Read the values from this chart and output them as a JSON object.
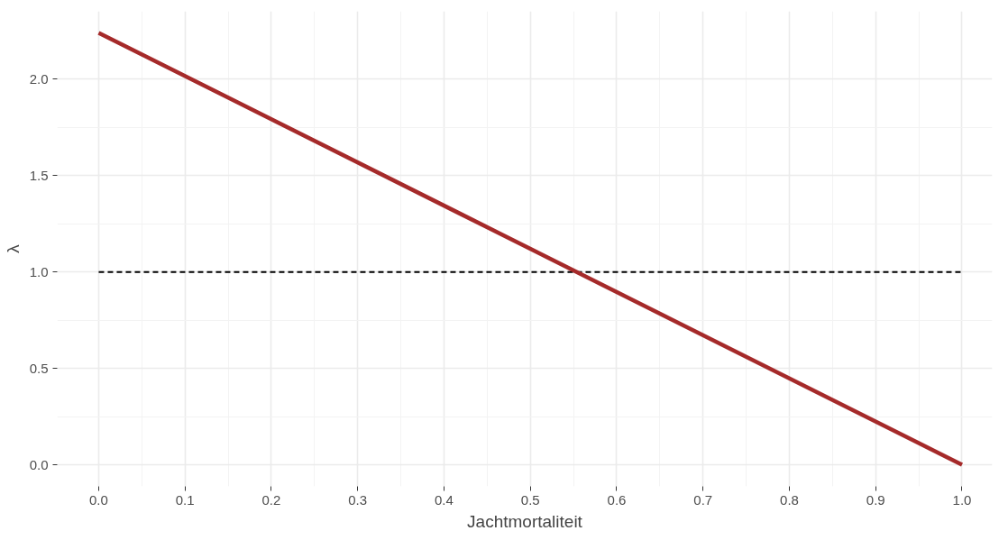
{
  "chart_data": {
    "type": "line",
    "xlabel": "Jachtmortaliteit",
    "ylabel": "λ",
    "x": [
      0,
      1
    ],
    "series": [
      {
        "color": "#a52a2a",
        "values": [
          2.24,
          0
        ]
      }
    ],
    "xlim": [
      -0.048,
      1.035
    ],
    "ylim": [
      -0.112,
      2.352
    ],
    "xticks": [
      {
        "value": 0,
        "label": "0.0"
      },
      {
        "value": 0.1,
        "label": "0.1"
      },
      {
        "value": 0.2,
        "label": "0.2"
      },
      {
        "value": 0.3,
        "label": "0.3"
      },
      {
        "value": 0.4,
        "label": "0.4"
      },
      {
        "value": 0.5,
        "label": "0.5"
      },
      {
        "value": 0.6,
        "label": "0.6"
      },
      {
        "value": 0.7,
        "label": "0.7"
      },
      {
        "value": 0.8,
        "label": "0.8"
      },
      {
        "value": 0.9,
        "label": "0.9"
      },
      {
        "value": 1,
        "label": "1.0"
      }
    ],
    "yticks": [
      {
        "value": 0,
        "label": "0.0"
      },
      {
        "value": 0.5,
        "label": "0.5"
      },
      {
        "value": 1,
        "label": "1.0"
      },
      {
        "value": 1.5,
        "label": "1.5"
      },
      {
        "value": 2,
        "label": "2.0"
      }
    ],
    "ref_lines": [
      {
        "axis": "y",
        "value": 1,
        "color": "#000000",
        "line_style": "dashed"
      }
    ],
    "grid": true,
    "line_style": "solid",
    "marker": "none"
  }
}
